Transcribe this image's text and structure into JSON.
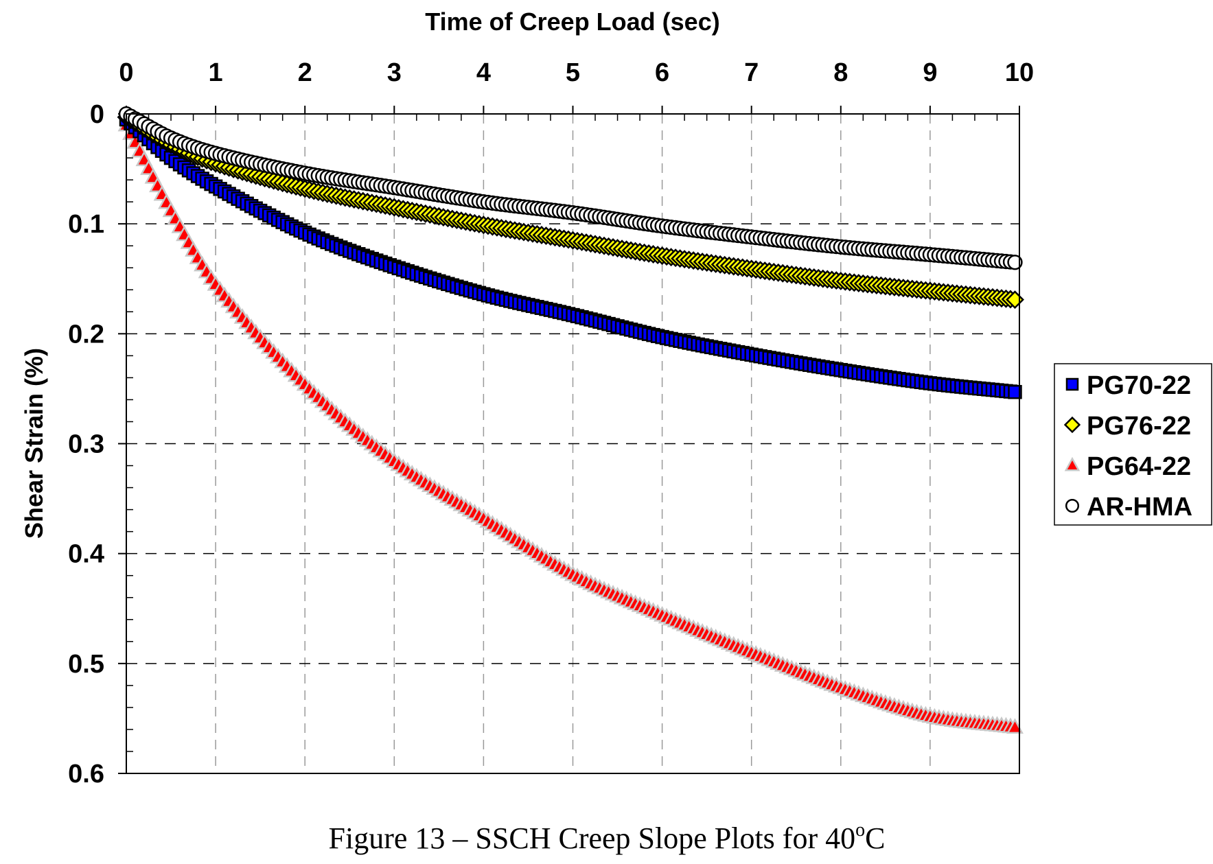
{
  "chart_data": {
    "type": "scatter",
    "title": "",
    "xlabel": "Time of Creep Load (sec)",
    "ylabel": "Shear Strain (%)",
    "xlim": [
      0,
      10
    ],
    "ylim": [
      0,
      0.6
    ],
    "y_inverted": true,
    "x_axis_position": "top",
    "x_ticks": [
      "0",
      "1",
      "2",
      "3",
      "4",
      "5",
      "6",
      "7",
      "8",
      "9",
      "10"
    ],
    "y_ticks": [
      "0",
      "0.1",
      "0.2",
      "0.3",
      "0.4",
      "0.5",
      "0.6"
    ],
    "grid": true,
    "legend_placement": "right",
    "x": [
      0,
      0.5,
      1,
      2,
      3,
      4,
      5,
      6,
      7,
      8,
      9,
      9.95
    ],
    "series": [
      {
        "name": "PG70-22",
        "marker": "square",
        "color": "#0000ff",
        "values": [
          0.005,
          0.04,
          0.066,
          0.108,
          0.139,
          0.164,
          0.183,
          0.203,
          0.219,
          0.233,
          0.245,
          0.253
        ]
      },
      {
        "name": "PG76-22",
        "marker": "diamond",
        "color": "#ffff00",
        "values": [
          0.003,
          0.028,
          0.045,
          0.068,
          0.085,
          0.101,
          0.115,
          0.129,
          0.141,
          0.152,
          0.161,
          0.169
        ]
      },
      {
        "name": "PG64-22",
        "marker": "triangle",
        "color": "#ff0000",
        "values": [
          0.01,
          0.088,
          0.155,
          0.246,
          0.316,
          0.368,
          0.419,
          0.456,
          0.49,
          0.522,
          0.548,
          0.558
        ]
      },
      {
        "name": "AR-HMA",
        "marker": "circle",
        "color": "#ffffff",
        "values": [
          0.0,
          0.022,
          0.036,
          0.054,
          0.067,
          0.08,
          0.09,
          0.102,
          0.112,
          0.121,
          0.128,
          0.135
        ]
      }
    ]
  },
  "caption": {
    "text": "Figure 13 – SSCH Creep Slope Plots for 40",
    "degree_mark": "o",
    "unit": "C"
  }
}
